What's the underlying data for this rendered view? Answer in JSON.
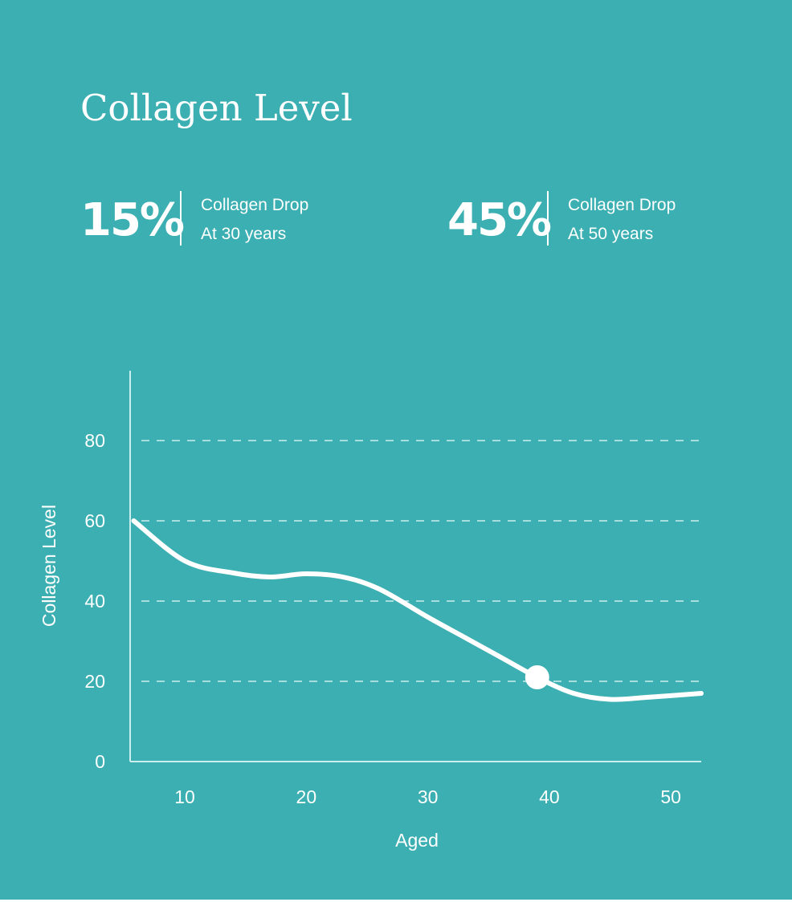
{
  "colors": {
    "background": "#3cafb2",
    "foreground": "#ffffff",
    "axis": "#cdeeee"
  },
  "title": "Collagen Level",
  "stats": [
    {
      "value": "15%",
      "label": "Collagen Drop",
      "sublabel": "At 30 years"
    },
    {
      "value": "45%",
      "label": "Collagen Drop",
      "sublabel": "At 50 years"
    }
  ],
  "chart_data": {
    "type": "line",
    "title": "Collagen Level",
    "xlabel": "Aged",
    "ylabel": "Collagen Level",
    "xlim": [
      5.5,
      52.5
    ],
    "ylim": [
      0,
      100
    ],
    "xticks": [
      10,
      20,
      30,
      40,
      50
    ],
    "yticks": [
      0,
      20,
      40,
      60,
      80
    ],
    "grid": true,
    "series": [
      {
        "values": [
          [
            5.8,
            60
          ],
          [
            10,
            50
          ],
          [
            14,
            47
          ],
          [
            17,
            46
          ],
          [
            20,
            46.8
          ],
          [
            23,
            46
          ],
          [
            26,
            43
          ],
          [
            30,
            36
          ],
          [
            33,
            31
          ],
          [
            36,
            26
          ],
          [
            39,
            21
          ],
          [
            42,
            17
          ],
          [
            45,
            15.5
          ],
          [
            48,
            16
          ],
          [
            52.5,
            17
          ]
        ],
        "marker": {
          "x": 39,
          "y": 21
        }
      }
    ]
  }
}
